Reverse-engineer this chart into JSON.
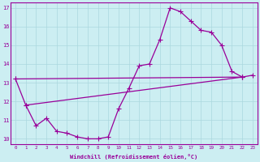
{
  "xlabel": "Windchill (Refroidissement éolien,°C)",
  "background_color": "#cceef2",
  "line_color": "#990099",
  "grid_color": "#aad8de",
  "ylim": [
    9.7,
    17.3
  ],
  "xlim": [
    -0.5,
    23.5
  ],
  "yticks": [
    10,
    11,
    12,
    13,
    14,
    15,
    16,
    17
  ],
  "xticks": [
    0,
    1,
    2,
    3,
    4,
    5,
    6,
    7,
    8,
    9,
    10,
    11,
    12,
    13,
    14,
    15,
    16,
    17,
    18,
    19,
    20,
    21,
    22,
    23
  ],
  "curve_x": [
    0,
    1,
    2,
    3,
    4,
    5,
    6,
    7,
    8,
    9,
    10,
    11,
    12,
    13,
    14,
    15,
    16,
    17,
    18,
    19,
    20,
    21,
    22,
    23
  ],
  "curve_y": [
    13.2,
    11.8,
    10.7,
    11.1,
    10.4,
    10.3,
    10.1,
    10.0,
    10.0,
    10.1,
    11.6,
    12.7,
    13.9,
    14.0,
    15.3,
    17.0,
    16.8,
    16.3,
    15.8,
    15.7,
    15.0,
    13.6,
    13.3,
    13.4
  ],
  "upper_line_x": [
    0,
    22
  ],
  "upper_line_y": [
    13.2,
    13.3
  ],
  "lower_line_x": [
    1,
    22
  ],
  "lower_line_y": [
    11.8,
    13.3
  ]
}
